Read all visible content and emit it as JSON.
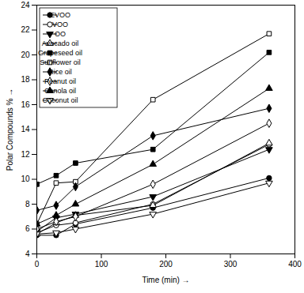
{
  "chart_data": {
    "type": "line",
    "x_label": "Time (min)",
    "y_label": "Polar Compounds %",
    "x": [
      0,
      30,
      60,
      180,
      360
    ],
    "series": [
      {
        "name": "EVOO",
        "color": "#000000",
        "marker": "circle",
        "values": [
          5.5,
          5.5,
          6.4,
          7.7,
          10.1
        ]
      },
      {
        "name": "VOO",
        "color": "#000000",
        "marker": "circle-open",
        "values": [
          5.7,
          6.3,
          6.5,
          8.0,
          12.8
        ]
      },
      {
        "name": "OO",
        "color": "#000000",
        "marker": "triangle-down",
        "values": [
          5.8,
          6.9,
          7.2,
          8.6,
          12.4
        ]
      },
      {
        "name": "Avocado oil",
        "color": "#000000",
        "marker": "triangle-open",
        "values": [
          5.6,
          6.5,
          7.1,
          7.9,
          12.9
        ]
      },
      {
        "name": "Grapeseed oil",
        "color": "#000000",
        "marker": "square",
        "values": [
          9.6,
          10.3,
          11.3,
          12.4,
          20.2
        ]
      },
      {
        "name": "Sunflower oil",
        "color": "#000000",
        "marker": "square-open",
        "values": [
          6.4,
          9.7,
          9.8,
          16.4,
          21.7
        ]
      },
      {
        "name": "Rice oil",
        "color": "#000000",
        "marker": "diamond",
        "values": [
          7.5,
          7.9,
          9.4,
          13.5,
          15.7
        ]
      },
      {
        "name": "Peanut oil",
        "color": "#000000",
        "marker": "diamond-open",
        "values": [
          6.0,
          6.6,
          7.0,
          9.6,
          14.5
        ]
      },
      {
        "name": "Canola oil",
        "color": "#000000",
        "marker": "triangle",
        "values": [
          6.4,
          7.1,
          8.0,
          11.2,
          17.3
        ]
      },
      {
        "name": "Coconut oil",
        "color": "#000000",
        "marker": "triangle-down-open",
        "values": [
          5.6,
          5.7,
          6.0,
          7.2,
          9.7
        ]
      }
    ],
    "xlim": [
      0,
      400
    ],
    "xticks": [
      0,
      100,
      200,
      300,
      400
    ],
    "ylim": [
      4,
      24
    ],
    "yticks": [
      4,
      6,
      8,
      10,
      12,
      14,
      16,
      18,
      20,
      22,
      24
    ],
    "legend": "top-left",
    "grid": false
  }
}
